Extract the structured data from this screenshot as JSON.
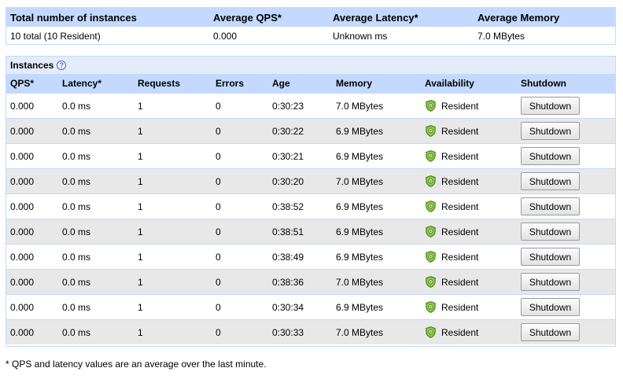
{
  "summary": {
    "headers": [
      "Total number of instances",
      "Average QPS*",
      "Average Latency*",
      "Average Memory"
    ],
    "values": [
      "10 total (10 Resident)",
      "0.000",
      "Unknown ms",
      "7.0 MBytes"
    ]
  },
  "instances": {
    "title": "Instances",
    "help_symbol": "?",
    "columns": [
      "QPS*",
      "Latency*",
      "Requests",
      "Errors",
      "Age",
      "Memory",
      "Availability",
      "Shutdown"
    ],
    "rows": [
      {
        "qps": "0.000",
        "latency": "0.0 ms",
        "requests": "1",
        "errors": "0",
        "age": "0:30:23",
        "memory": "7.0 MBytes",
        "availability": "Resident",
        "action": "Shutdown"
      },
      {
        "qps": "0.000",
        "latency": "0.0 ms",
        "requests": "1",
        "errors": "0",
        "age": "0:30:22",
        "memory": "6.9 MBytes",
        "availability": "Resident",
        "action": "Shutdown"
      },
      {
        "qps": "0.000",
        "latency": "0.0 ms",
        "requests": "1",
        "errors": "0",
        "age": "0:30:21",
        "memory": "6.9 MBytes",
        "availability": "Resident",
        "action": "Shutdown"
      },
      {
        "qps": "0.000",
        "latency": "0.0 ms",
        "requests": "1",
        "errors": "0",
        "age": "0:30:20",
        "memory": "7.0 MBytes",
        "availability": "Resident",
        "action": "Shutdown"
      },
      {
        "qps": "0.000",
        "latency": "0.0 ms",
        "requests": "1",
        "errors": "0",
        "age": "0:38:52",
        "memory": "6.9 MBytes",
        "availability": "Resident",
        "action": "Shutdown"
      },
      {
        "qps": "0.000",
        "latency": "0.0 ms",
        "requests": "1",
        "errors": "0",
        "age": "0:38:51",
        "memory": "6.9 MBytes",
        "availability": "Resident",
        "action": "Shutdown"
      },
      {
        "qps": "0.000",
        "latency": "0.0 ms",
        "requests": "1",
        "errors": "0",
        "age": "0:38:49",
        "memory": "6.9 MBytes",
        "availability": "Resident",
        "action": "Shutdown"
      },
      {
        "qps": "0.000",
        "latency": "0.0 ms",
        "requests": "1",
        "errors": "0",
        "age": "0:38:36",
        "memory": "7.0 MBytes",
        "availability": "Resident",
        "action": "Shutdown"
      },
      {
        "qps": "0.000",
        "latency": "0.0 ms",
        "requests": "1",
        "errors": "0",
        "age": "0:30:34",
        "memory": "6.9 MBytes",
        "availability": "Resident",
        "action": "Shutdown"
      },
      {
        "qps": "0.000",
        "latency": "0.0 ms",
        "requests": "1",
        "errors": "0",
        "age": "0:30:33",
        "memory": "7.0 MBytes",
        "availability": "Resident",
        "action": "Shutdown"
      }
    ]
  },
  "footnote": "* QPS and latency values are an average over the last minute.",
  "icons": {
    "availability": "resident-shield-icon",
    "help": "help-icon"
  },
  "colors": {
    "header_bg": "#c3d9ff",
    "title_bg": "#e5ecf9",
    "alt_row_bg": "#e8e8e8",
    "shield_green": "#8dc63f"
  }
}
